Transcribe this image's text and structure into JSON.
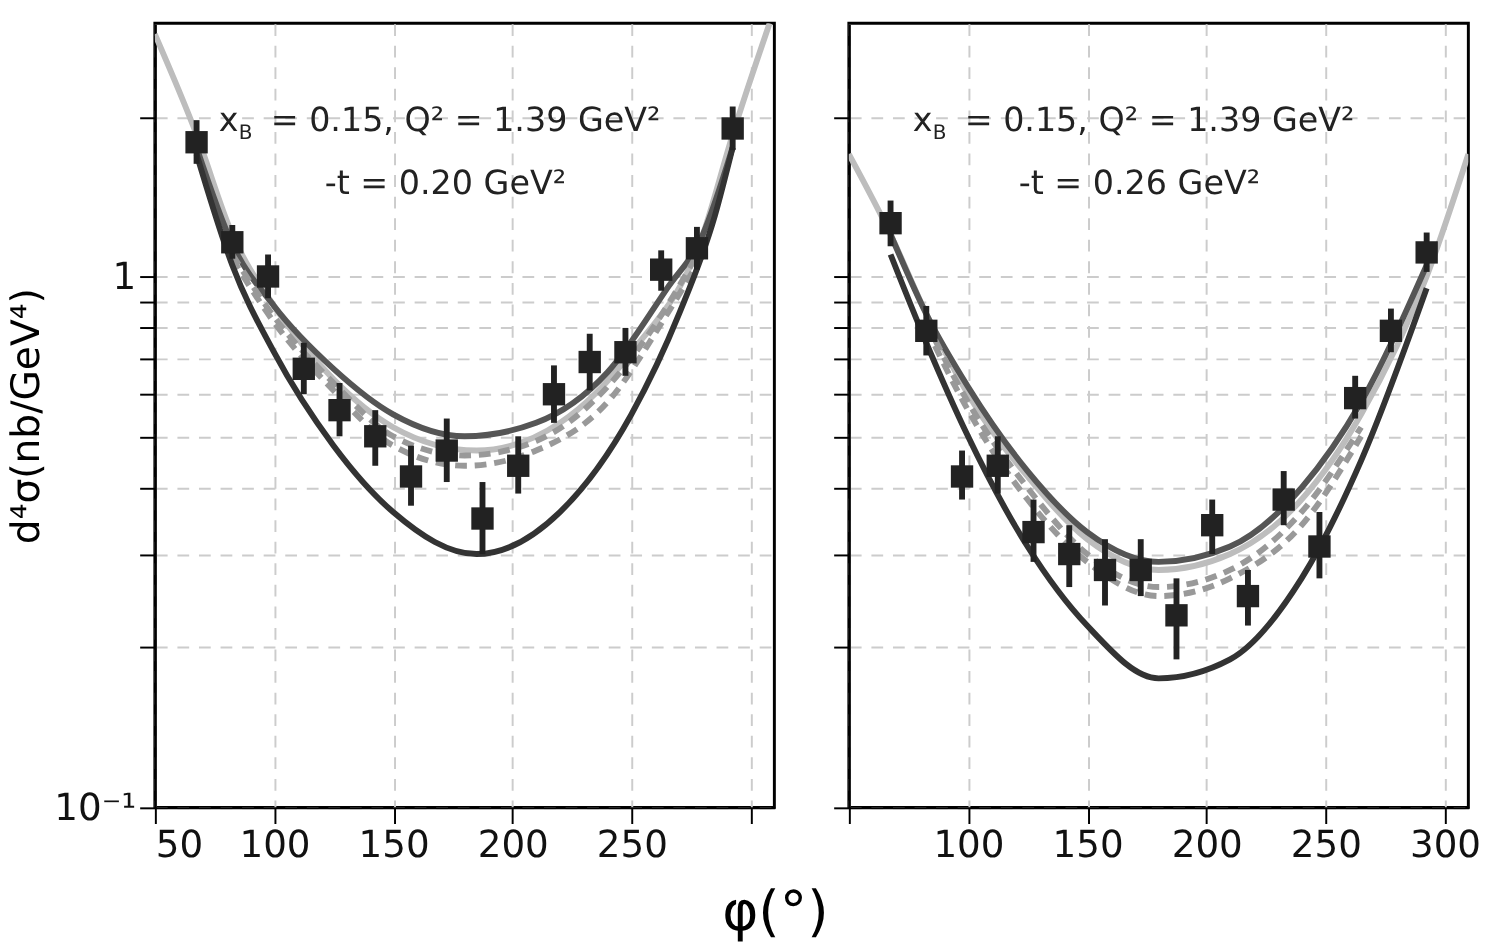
{
  "chart_data": [
    {
      "type": "scatter",
      "ylabel": "d⁴σ(nb/GeV⁴)",
      "xlabel": "φ(°)",
      "log": "y",
      "grid": true,
      "annotations": [
        "x$_{B}$ = 0.15, Q² = 1.39 GeV²",
        "-t = 0.20 GeV²"
      ],
      "xlim": [
        50,
        310
      ],
      "xticks": [
        50,
        100,
        150,
        200,
        250,
        {
          "value": 300,
          "label": null
        }
      ],
      "ylim": [
        0.1,
        3
      ],
      "yticks": [
        {
          "value": 0.1,
          "label": "10⁻¹"
        },
        {
          "value": 0.2,
          "label": null
        },
        {
          "value": 0.3,
          "label": null
        },
        {
          "value": 0.4,
          "label": null
        },
        {
          "value": 0.5,
          "label": null
        },
        {
          "value": 0.6,
          "label": null
        },
        {
          "value": 0.7,
          "label": null
        },
        {
          "value": 0.8,
          "label": null
        },
        {
          "value": 0.9,
          "label": null
        },
        1,
        {
          "value": 2,
          "label": null
        }
      ],
      "series": [
        {
          "type": "line",
          "color": "#bdbdbd",
          "line_style": "solid",
          "x": [
            50,
            67.5,
            82.5,
            100,
            125,
            150,
            185,
            220,
            250,
            280,
            292.5,
            308
          ],
          "values": [
            2.86,
            1.85,
            1.2,
            0.88,
            0.64,
            0.52,
            0.47,
            0.53,
            0.72,
            1.2,
            1.85,
            3.0
          ]
        },
        {
          "type": "line",
          "color": "#555555",
          "line_style": "solid",
          "x": [
            67.5,
            82.5,
            100,
            125,
            150,
            180,
            210,
            240,
            265,
            280,
            292.5
          ],
          "values": [
            1.75,
            1.15,
            0.88,
            0.67,
            0.55,
            0.5,
            0.53,
            0.66,
            0.95,
            1.2,
            1.75
          ]
        },
        {
          "type": "line",
          "color": "#999999",
          "line_style": "dashed",
          "x": [
            82.5,
            100,
            125,
            150,
            180,
            210,
            240,
            265,
            280
          ],
          "values": [
            1.1,
            0.84,
            0.63,
            0.5,
            0.46,
            0.49,
            0.62,
            0.88,
            1.15
          ]
        },
        {
          "type": "line",
          "color": "#999999",
          "line_style": "dashed",
          "x": [
            82.5,
            100,
            125,
            150,
            180,
            210,
            240,
            265,
            280
          ],
          "values": [
            1.08,
            0.82,
            0.61,
            0.48,
            0.44,
            0.47,
            0.58,
            0.85,
            1.1
          ]
        },
        {
          "type": "line",
          "color": "#333333",
          "line_style": "solid",
          "x": [
            67.5,
            82.5,
            100,
            125,
            150,
            185,
            220,
            250,
            270,
            285,
            292.5
          ],
          "values": [
            1.7,
            1.05,
            0.72,
            0.48,
            0.36,
            0.3,
            0.36,
            0.55,
            0.85,
            1.3,
            1.75
          ]
        },
        {
          "marker": "square",
          "color": "#222222",
          "x": [
            67.5,
            82.5,
            97.5,
            112.5,
            127.5,
            142.5,
            157.5,
            172.5,
            187.5,
            202.5,
            217.5,
            232.5,
            247.5,
            262.5,
            277.5,
            292.5
          ],
          "values": [
            1.79,
            1.16,
            1.0,
            0.67,
            0.56,
            0.5,
            0.42,
            0.47,
            0.35,
            0.44,
            0.6,
            0.69,
            0.72,
            1.03,
            1.13,
            1.9
          ],
          "errors": [
            [
              1.63,
              1.97
            ],
            [
              1.08,
              1.25
            ],
            [
              0.91,
              1.1
            ],
            [
              0.6,
              0.75
            ],
            [
              0.5,
              0.63
            ],
            [
              0.44,
              0.56
            ],
            [
              0.37,
              0.48
            ],
            [
              0.41,
              0.54
            ],
            [
              0.3,
              0.41
            ],
            [
              0.39,
              0.5
            ],
            [
              0.53,
              0.68
            ],
            [
              0.61,
              0.78
            ],
            [
              0.65,
              0.8
            ],
            [
              0.94,
              1.12
            ],
            [
              1.03,
              1.24
            ],
            [
              1.73,
              2.09
            ]
          ]
        }
      ]
    },
    {
      "type": "scatter",
      "log": "y",
      "grid": true,
      "tick_labels": "x",
      "annotations": [
        "x$_{B}$ = 0.15, Q² = 1.39 GeV²",
        "-t = 0.26 GeV²"
      ],
      "xlim": [
        50,
        310
      ],
      "xticks": [
        {
          "value": 50,
          "label": null
        },
        100,
        150,
        200,
        250,
        300
      ],
      "ylim": [
        0.1,
        3
      ],
      "yticks": [
        {
          "value": 0.1,
          "label": null
        },
        {
          "value": 0.2,
          "label": null
        },
        {
          "value": 0.3,
          "label": null
        },
        {
          "value": 0.4,
          "label": null
        },
        {
          "value": 0.5,
          "label": null
        },
        {
          "value": 0.6,
          "label": null
        },
        {
          "value": 0.7,
          "label": null
        },
        {
          "value": 0.8,
          "label": null
        },
        {
          "value": 0.9,
          "label": null
        },
        {
          "value": 1,
          "label": null
        },
        {
          "value": 2,
          "label": null
        }
      ],
      "series": [
        {
          "type": "line",
          "color": "#bdbdbd",
          "line_style": "solid",
          "x": [
            50,
            67.5,
            82.5,
            100,
            125,
            150,
            180,
            210,
            240,
            265,
            292.5,
            310
          ],
          "values": [
            1.7,
            1.2,
            0.85,
            0.6,
            0.42,
            0.32,
            0.28,
            0.3,
            0.38,
            0.55,
            1.0,
            1.7
          ]
        },
        {
          "type": "line",
          "color": "#555555",
          "line_style": "solid",
          "x": [
            67.5,
            82.5,
            100,
            125,
            150,
            180,
            210,
            240,
            265,
            292.5
          ],
          "values": [
            1.2,
            0.85,
            0.62,
            0.43,
            0.33,
            0.29,
            0.31,
            0.4,
            0.58,
            1.05
          ]
        },
        {
          "type": "line",
          "color": "#999999",
          "line_style": "dashed",
          "x": [
            82.5,
            100,
            125,
            150,
            180,
            210,
            240,
            265
          ],
          "values": [
            0.82,
            0.58,
            0.4,
            0.3,
            0.26,
            0.28,
            0.36,
            0.52
          ]
        },
        {
          "type": "line",
          "color": "#999999",
          "line_style": "dashed",
          "x": [
            82.5,
            100,
            125,
            150,
            180,
            210,
            240,
            265
          ],
          "values": [
            0.8,
            0.56,
            0.38,
            0.29,
            0.25,
            0.27,
            0.34,
            0.5
          ]
        },
        {
          "type": "line",
          "color": "#333333",
          "line_style": "solid",
          "x": [
            67.5,
            82.5,
            100,
            125,
            150,
            180,
            210,
            240,
            265,
            292.5
          ],
          "values": [
            1.1,
            0.75,
            0.5,
            0.31,
            0.22,
            0.175,
            0.19,
            0.27,
            0.45,
            0.95
          ]
        },
        {
          "marker": "square",
          "color": "#222222",
          "x": [
            67.5,
            82.5,
            97.5,
            112.5,
            127.5,
            142.5,
            157.5,
            172.5,
            187.5,
            202.5,
            217.5,
            232.5,
            247.5,
            262.5,
            277.5,
            292.5
          ],
          "values": [
            1.26,
            0.79,
            0.42,
            0.44,
            0.33,
            0.3,
            0.28,
            0.28,
            0.23,
            0.34,
            0.25,
            0.38,
            0.31,
            0.59,
            0.79,
            1.11
          ],
          "errors": [
            [
              1.14,
              1.39
            ],
            [
              0.71,
              0.88
            ],
            [
              0.38,
              0.47
            ],
            [
              0.39,
              0.5
            ],
            [
              0.29,
              0.38
            ],
            [
              0.26,
              0.34
            ],
            [
              0.24,
              0.32
            ],
            [
              0.25,
              0.32
            ],
            [
              0.19,
              0.27
            ],
            [
              0.3,
              0.38
            ],
            [
              0.22,
              0.28
            ],
            [
              0.34,
              0.43
            ],
            [
              0.27,
              0.36
            ],
            [
              0.54,
              0.65
            ],
            [
              0.72,
              0.87
            ],
            [
              1.02,
              1.21
            ]
          ]
        }
      ]
    }
  ]
}
